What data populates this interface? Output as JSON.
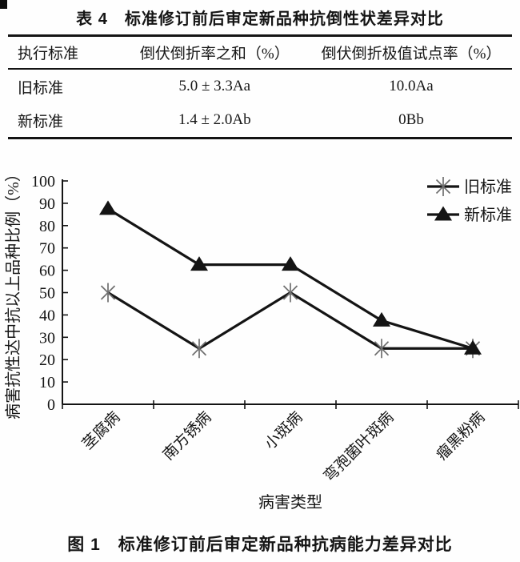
{
  "table": {
    "title": "表 4　标准修订前后审定新品种抗倒性状差异对比",
    "columns": [
      "执行标准",
      "倒伏倒折率之和（%）",
      "倒伏倒折极值试点率（%）"
    ],
    "rows": [
      {
        "label": "旧标准",
        "sum_rate": "5.0 ± 3.3Aa",
        "extreme_rate": "10.0Aa"
      },
      {
        "label": "新标准",
        "sum_rate": "1.4 ± 2.0Ab",
        "extreme_rate": "0Bb"
      }
    ]
  },
  "figure": {
    "caption": "图 1　标准修订前后审定新品种抗病能力差异对比"
  },
  "chart_data": {
    "type": "line",
    "title": "",
    "categories": [
      "茎腐病",
      "南方锈病",
      "小斑病",
      "弯孢菌叶斑病",
      "瘤黑粉病"
    ],
    "series": [
      {
        "name": "旧标准",
        "marker": "asterisk",
        "line_color": "#141414",
        "marker_color": "#6e6e6e",
        "values": [
          50,
          25,
          50,
          25,
          25
        ]
      },
      {
        "name": "新标准",
        "marker": "triangle",
        "line_color": "#141414",
        "marker_color": "#141414",
        "values": [
          87.5,
          62.5,
          62.5,
          37.5,
          25
        ]
      }
    ],
    "xlabel": "病害类型",
    "ylabel": "病害抗性达中抗以上品种比例（%）",
    "ylim": [
      0,
      100
    ],
    "ytick_step": 10,
    "grid": false,
    "legend_position": "top-right"
  }
}
